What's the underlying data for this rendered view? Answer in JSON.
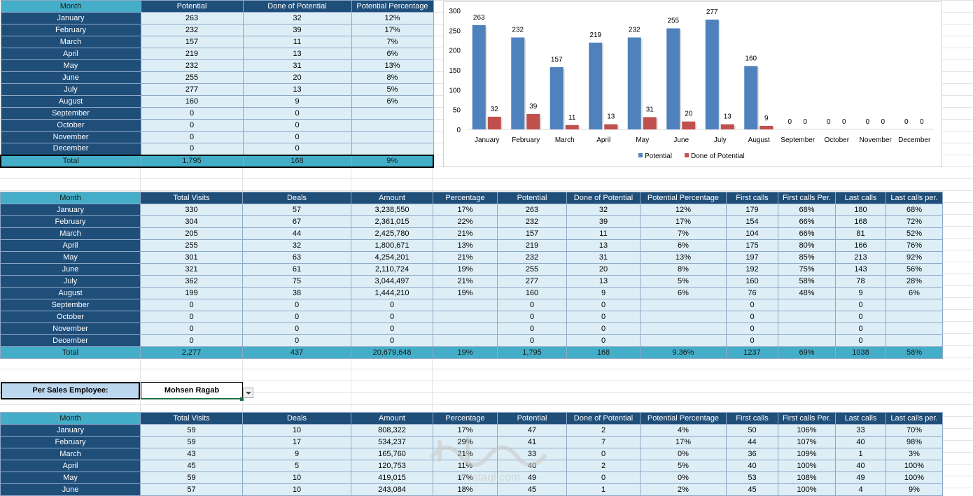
{
  "table1": {
    "headers": [
      "Month",
      "Potential",
      "Done of Potential",
      "Potential Percentage"
    ],
    "rows": [
      [
        "January",
        "263",
        "32",
        "12%"
      ],
      [
        "February",
        "232",
        "39",
        "17%"
      ],
      [
        "March",
        "157",
        "11",
        "7%"
      ],
      [
        "April",
        "219",
        "13",
        "6%"
      ],
      [
        "May",
        "232",
        "31",
        "13%"
      ],
      [
        "June",
        "255",
        "20",
        "8%"
      ],
      [
        "July",
        "277",
        "13",
        "5%"
      ],
      [
        "August",
        "160",
        "9",
        "6%"
      ],
      [
        "September",
        "0",
        "0",
        ""
      ],
      [
        "October",
        "0",
        "0",
        ""
      ],
      [
        "November",
        "0",
        "0",
        ""
      ],
      [
        "December",
        "0",
        "0",
        ""
      ]
    ],
    "total": [
      "Total",
      "1,795",
      "168",
      "9%"
    ]
  },
  "chart_data": {
    "type": "bar",
    "categories": [
      "January",
      "February",
      "March",
      "April",
      "May",
      "June",
      "July",
      "August",
      "September",
      "October",
      "November",
      "December"
    ],
    "series": [
      {
        "name": "Potential",
        "values": [
          263,
          232,
          157,
          219,
          232,
          255,
          277,
          160,
          0,
          0,
          0,
          0
        ],
        "color": "#4f81bd"
      },
      {
        "name": "Done of Potential",
        "values": [
          32,
          39,
          11,
          13,
          31,
          20,
          13,
          9,
          0,
          0,
          0,
          0
        ],
        "color": "#c0504d"
      }
    ],
    "yticks": [
      0,
      50,
      100,
      150,
      200,
      250,
      300
    ],
    "ylim": [
      0,
      300
    ],
    "legend": "bottom",
    "grid": false
  },
  "table2": {
    "headers": [
      "Month",
      "Total Visits",
      "Deals",
      "Amount",
      "Percentage",
      "Potential",
      "Done of Potential",
      "Potential Percentage",
      "First calls",
      "First calls Per.",
      "Last calls",
      "Last calls per."
    ],
    "rows": [
      [
        "January",
        "330",
        "57",
        "3,238,550",
        "17%",
        "263",
        "32",
        "12%",
        "179",
        "68%",
        "180",
        "68%"
      ],
      [
        "February",
        "304",
        "67",
        "2,361,015",
        "22%",
        "232",
        "39",
        "17%",
        "154",
        "66%",
        "168",
        "72%"
      ],
      [
        "March",
        "205",
        "44",
        "2,425,780",
        "21%",
        "157",
        "11",
        "7%",
        "104",
        "66%",
        "81",
        "52%"
      ],
      [
        "April",
        "255",
        "32",
        "1,800,671",
        "13%",
        "219",
        "13",
        "6%",
        "175",
        "80%",
        "166",
        "76%"
      ],
      [
        "May",
        "301",
        "63",
        "4,254,201",
        "21%",
        "232",
        "31",
        "13%",
        "197",
        "85%",
        "213",
        "92%"
      ],
      [
        "June",
        "321",
        "61",
        "2,110,724",
        "19%",
        "255",
        "20",
        "8%",
        "192",
        "75%",
        "143",
        "56%"
      ],
      [
        "July",
        "362",
        "75",
        "3,044,497",
        "21%",
        "277",
        "13",
        "5%",
        "160",
        "58%",
        "78",
        "28%"
      ],
      [
        "August",
        "199",
        "38",
        "1,444,210",
        "19%",
        "160",
        "9",
        "6%",
        "76",
        "48%",
        "9",
        "6%"
      ],
      [
        "September",
        "0",
        "0",
        "0",
        "",
        "0",
        "0",
        "",
        "0",
        "",
        "0",
        ""
      ],
      [
        "October",
        "0",
        "0",
        "0",
        "",
        "0",
        "0",
        "",
        "0",
        "",
        "0",
        ""
      ],
      [
        "November",
        "0",
        "0",
        "0",
        "",
        "0",
        "0",
        "",
        "0",
        "",
        "0",
        ""
      ],
      [
        "December",
        "0",
        "0",
        "0",
        "",
        "0",
        "0",
        "",
        "0",
        "",
        "0",
        ""
      ]
    ],
    "total": [
      "Total",
      "2,277",
      "437",
      "20,679,648",
      "19%",
      "1,795",
      "168",
      "9.36%",
      "1237",
      "69%",
      "1038",
      "58%"
    ]
  },
  "employee_filter": {
    "label": "Per Sales Employee:",
    "value": "Mohsen Ragab"
  },
  "table3": {
    "headers": [
      "Month",
      "Total Visits",
      "Deals",
      "Amount",
      "Percentage",
      "Potential",
      "Done of Potential",
      "Potential Percentage",
      "First calls",
      "First calls Per.",
      "Last calls",
      "Last calls per."
    ],
    "rows": [
      [
        "January",
        "59",
        "10",
        "808,322",
        "17%",
        "47",
        "2",
        "4%",
        "50",
        "106%",
        "33",
        "70%"
      ],
      [
        "February",
        "59",
        "17",
        "534,237",
        "29%",
        "41",
        "7",
        "17%",
        "44",
        "107%",
        "40",
        "98%"
      ],
      [
        "March",
        "43",
        "9",
        "165,760",
        "21%",
        "33",
        "0",
        "0%",
        "36",
        "109%",
        "1",
        "3%"
      ],
      [
        "April",
        "45",
        "5",
        "120,753",
        "11%",
        "40",
        "2",
        "5%",
        "40",
        "100%",
        "40",
        "100%"
      ],
      [
        "May",
        "59",
        "10",
        "419,015",
        "17%",
        "49",
        "0",
        "0%",
        "53",
        "108%",
        "49",
        "100%"
      ],
      [
        "June",
        "57",
        "10",
        "243,084",
        "18%",
        "45",
        "1",
        "2%",
        "45",
        "100%",
        "4",
        "9%"
      ]
    ]
  },
  "colors": {
    "header_dark": "#1f4e79",
    "header_accent": "#44aec8",
    "cell_light": "#ddeef6",
    "potential_bar": "#4f81bd",
    "done_bar": "#c0504d"
  }
}
